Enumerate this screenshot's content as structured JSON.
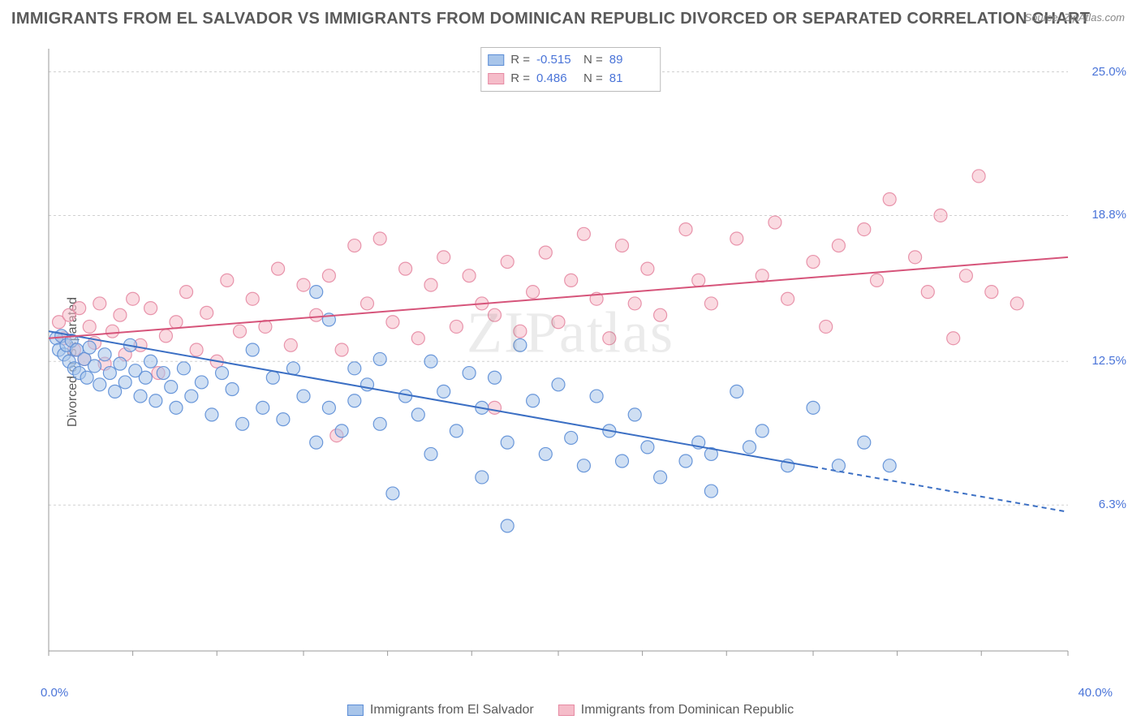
{
  "title": "IMMIGRANTS FROM EL SALVADOR VS IMMIGRANTS FROM DOMINICAN REPUBLIC DIVORCED OR SEPARATED CORRELATION CHART",
  "source": "Source: ZipAtlas.com",
  "watermark": "ZIPatlas",
  "y_axis_label": "Divorced or Separated",
  "chart": {
    "type": "scatter",
    "xlim": [
      0,
      40
    ],
    "ylim": [
      0,
      26
    ],
    "x_tick_labels": {
      "min": "0.0%",
      "max": "40.0%"
    },
    "x_tick_positions": [
      0,
      3.3,
      6.6,
      10,
      13.3,
      16.6,
      20,
      23.3,
      26.6,
      30,
      33.3,
      36.6,
      40
    ],
    "y_ticks": [
      {
        "value": 6.3,
        "label": "6.3%"
      },
      {
        "value": 12.5,
        "label": "12.5%"
      },
      {
        "value": 18.8,
        "label": "18.8%"
      },
      {
        "value": 25.0,
        "label": "25.0%"
      }
    ],
    "background_color": "#ffffff",
    "grid_color": "#d0d0d0",
    "axis_color": "#999999",
    "marker_radius": 8,
    "marker_opacity": 0.55,
    "marker_stroke_opacity": 0.9,
    "line_width": 2
  },
  "series": [
    {
      "name": "Immigrants from El Salvador",
      "fill": "#a8c5ea",
      "stroke": "#5b8dd6",
      "line_color": "#3b6fc4",
      "R_label": "R =",
      "R": "-0.515",
      "N_label": "N =",
      "N": "89",
      "trend": {
        "x1": 0,
        "y1": 13.8,
        "x2": 40,
        "y2": 6.0,
        "solid_until_x": 30
      },
      "points": [
        [
          0.3,
          13.5
        ],
        [
          0.4,
          13.0
        ],
        [
          0.5,
          13.6
        ],
        [
          0.6,
          12.8
        ],
        [
          0.7,
          13.2
        ],
        [
          0.8,
          12.5
        ],
        [
          0.9,
          13.4
        ],
        [
          1.0,
          12.2
        ],
        [
          1.1,
          13.0
        ],
        [
          1.2,
          12.0
        ],
        [
          1.4,
          12.6
        ],
        [
          1.5,
          11.8
        ],
        [
          1.6,
          13.1
        ],
        [
          1.8,
          12.3
        ],
        [
          2.0,
          11.5
        ],
        [
          2.2,
          12.8
        ],
        [
          2.4,
          12.0
        ],
        [
          2.6,
          11.2
        ],
        [
          2.8,
          12.4
        ],
        [
          3.0,
          11.6
        ],
        [
          3.2,
          13.2
        ],
        [
          3.4,
          12.1
        ],
        [
          3.6,
          11.0
        ],
        [
          3.8,
          11.8
        ],
        [
          4.0,
          12.5
        ],
        [
          4.2,
          10.8
        ],
        [
          4.5,
          12.0
        ],
        [
          4.8,
          11.4
        ],
        [
          5.0,
          10.5
        ],
        [
          5.3,
          12.2
        ],
        [
          5.6,
          11.0
        ],
        [
          6.0,
          11.6
        ],
        [
          6.4,
          10.2
        ],
        [
          6.8,
          12.0
        ],
        [
          7.2,
          11.3
        ],
        [
          7.6,
          9.8
        ],
        [
          8.0,
          13.0
        ],
        [
          8.4,
          10.5
        ],
        [
          8.8,
          11.8
        ],
        [
          9.2,
          10.0
        ],
        [
          9.6,
          12.2
        ],
        [
          10.0,
          11.0
        ],
        [
          10.5,
          9.0
        ],
        [
          10.5,
          15.5
        ],
        [
          11.0,
          10.5
        ],
        [
          11.0,
          14.3
        ],
        [
          11.5,
          9.5
        ],
        [
          12.0,
          12.2
        ],
        [
          12.0,
          10.8
        ],
        [
          12.5,
          11.5
        ],
        [
          13.0,
          9.8
        ],
        [
          13.0,
          12.6
        ],
        [
          13.5,
          6.8
        ],
        [
          14.0,
          11.0
        ],
        [
          14.5,
          10.2
        ],
        [
          15.0,
          12.5
        ],
        [
          15.0,
          8.5
        ],
        [
          15.5,
          11.2
        ],
        [
          16.0,
          9.5
        ],
        [
          16.5,
          12.0
        ],
        [
          17.0,
          10.5
        ],
        [
          17.0,
          7.5
        ],
        [
          17.5,
          11.8
        ],
        [
          18.0,
          9.0
        ],
        [
          18.0,
          5.4
        ],
        [
          18.5,
          13.2
        ],
        [
          19.0,
          10.8
        ],
        [
          19.5,
          8.5
        ],
        [
          20.0,
          11.5
        ],
        [
          20.5,
          9.2
        ],
        [
          21.0,
          8.0
        ],
        [
          21.5,
          11.0
        ],
        [
          22.0,
          9.5
        ],
        [
          22.5,
          8.2
        ],
        [
          23.0,
          10.2
        ],
        [
          23.5,
          8.8
        ],
        [
          24.0,
          7.5
        ],
        [
          25.0,
          8.2
        ],
        [
          25.5,
          9.0
        ],
        [
          26.0,
          8.5
        ],
        [
          26.0,
          6.9
        ],
        [
          27.0,
          11.2
        ],
        [
          27.5,
          8.8
        ],
        [
          28.0,
          9.5
        ],
        [
          29.0,
          8.0
        ],
        [
          30.0,
          10.5
        ],
        [
          31.0,
          8.0
        ],
        [
          32.0,
          9.0
        ],
        [
          33.0,
          8.0
        ]
      ]
    },
    {
      "name": "Immigrants from Dominican Republic",
      "fill": "#f5bcc9",
      "stroke": "#e68aa3",
      "line_color": "#d6547a",
      "R_label": "R =",
      "R": "0.486",
      "N_label": "N =",
      "N": "81",
      "trend": {
        "x1": 0,
        "y1": 13.5,
        "x2": 40,
        "y2": 17.0,
        "solid_until_x": 40
      },
      "points": [
        [
          0.4,
          14.2
        ],
        [
          0.6,
          13.5
        ],
        [
          0.8,
          14.5
        ],
        [
          1.0,
          13.0
        ],
        [
          1.2,
          14.8
        ],
        [
          1.4,
          12.6
        ],
        [
          1.6,
          14.0
        ],
        [
          1.8,
          13.3
        ],
        [
          2.0,
          15.0
        ],
        [
          2.2,
          12.4
        ],
        [
          2.5,
          13.8
        ],
        [
          2.8,
          14.5
        ],
        [
          3.0,
          12.8
        ],
        [
          3.3,
          15.2
        ],
        [
          3.6,
          13.2
        ],
        [
          4.0,
          14.8
        ],
        [
          4.3,
          12.0
        ],
        [
          4.6,
          13.6
        ],
        [
          5.0,
          14.2
        ],
        [
          5.4,
          15.5
        ],
        [
          5.8,
          13.0
        ],
        [
          6.2,
          14.6
        ],
        [
          6.6,
          12.5
        ],
        [
          7.0,
          16.0
        ],
        [
          7.5,
          13.8
        ],
        [
          8.0,
          15.2
        ],
        [
          8.5,
          14.0
        ],
        [
          9.0,
          16.5
        ],
        [
          9.5,
          13.2
        ],
        [
          10.0,
          15.8
        ],
        [
          10.5,
          14.5
        ],
        [
          11.0,
          16.2
        ],
        [
          11.3,
          9.3
        ],
        [
          11.5,
          13.0
        ],
        [
          12.0,
          17.5
        ],
        [
          12.5,
          15.0
        ],
        [
          13.0,
          17.8
        ],
        [
          13.5,
          14.2
        ],
        [
          14.0,
          16.5
        ],
        [
          14.5,
          13.5
        ],
        [
          15.0,
          15.8
        ],
        [
          15.5,
          17.0
        ],
        [
          16.0,
          14.0
        ],
        [
          16.5,
          16.2
        ],
        [
          17.0,
          15.0
        ],
        [
          17.5,
          10.5
        ],
        [
          17.5,
          14.5
        ],
        [
          18.0,
          16.8
        ],
        [
          18.5,
          13.8
        ],
        [
          19.0,
          15.5
        ],
        [
          19.5,
          17.2
        ],
        [
          20.0,
          14.2
        ],
        [
          20.5,
          16.0
        ],
        [
          21.0,
          18.0
        ],
        [
          21.5,
          15.2
        ],
        [
          22.0,
          13.5
        ],
        [
          22.5,
          17.5
        ],
        [
          23.0,
          15.0
        ],
        [
          23.5,
          16.5
        ],
        [
          24.0,
          14.5
        ],
        [
          25.0,
          18.2
        ],
        [
          25.5,
          16.0
        ],
        [
          26.0,
          15.0
        ],
        [
          27.0,
          17.8
        ],
        [
          28.0,
          16.2
        ],
        [
          28.5,
          18.5
        ],
        [
          29.0,
          15.2
        ],
        [
          30.0,
          16.8
        ],
        [
          30.5,
          14.0
        ],
        [
          31.0,
          17.5
        ],
        [
          32.0,
          18.2
        ],
        [
          32.5,
          16.0
        ],
        [
          33.0,
          19.5
        ],
        [
          34.0,
          17.0
        ],
        [
          34.5,
          15.5
        ],
        [
          35.0,
          18.8
        ],
        [
          35.5,
          13.5
        ],
        [
          36.0,
          16.2
        ],
        [
          36.5,
          20.5
        ],
        [
          37.0,
          15.5
        ],
        [
          38.0,
          15.0
        ]
      ]
    }
  ],
  "legend": {
    "series1": "Immigrants from El Salvador",
    "series2": "Immigrants from Dominican Republic"
  }
}
